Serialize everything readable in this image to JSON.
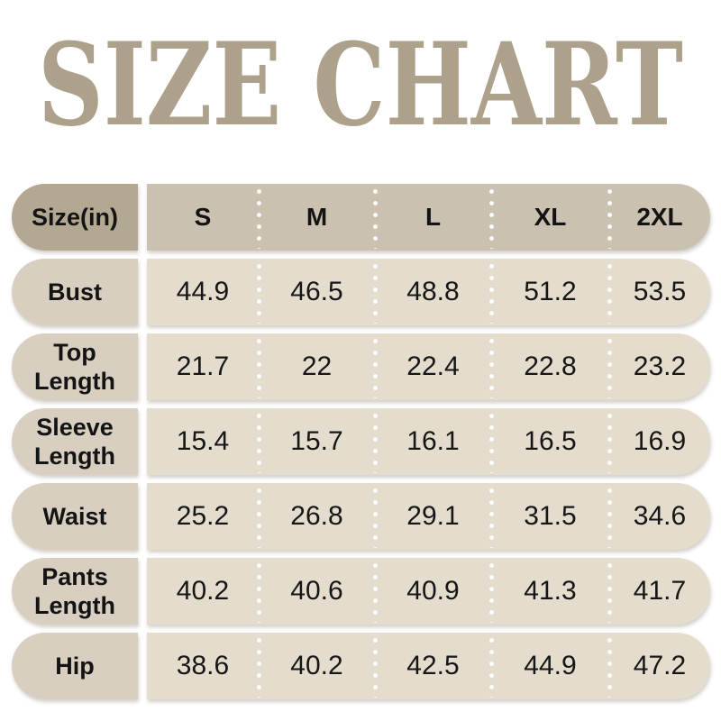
{
  "chart_data": {
    "type": "table",
    "title": "SIZE CHART",
    "unit_header": "Size(in)",
    "columns": [
      "S",
      "M",
      "L",
      "XL",
      "2XL"
    ],
    "rows": [
      {
        "label": "Bust",
        "values": [
          "44.9",
          "46.5",
          "48.8",
          "51.2",
          "53.5"
        ]
      },
      {
        "label": "Top Length",
        "values": [
          "21.7",
          "22",
          "22.4",
          "22.8",
          "23.2"
        ]
      },
      {
        "label": "Sleeve Length",
        "values": [
          "15.4",
          "15.7",
          "16.1",
          "16.5",
          "16.9"
        ]
      },
      {
        "label": "Waist",
        "values": [
          "25.2",
          "26.8",
          "29.1",
          "31.5",
          "34.6"
        ]
      },
      {
        "label": "Pants Length",
        "values": [
          "40.2",
          "40.6",
          "40.9",
          "41.3",
          "41.7"
        ]
      },
      {
        "label": "Hip",
        "values": [
          "38.6",
          "40.2",
          "42.5",
          "44.9",
          "47.2"
        ]
      }
    ],
    "layout_hints": {
      "legend": "none",
      "grid": "dotted-white-column-separators",
      "row_shape": "rounded-pill-rows"
    }
  },
  "colors": {
    "title_text": "#ada18b",
    "header_label_bg": "#b3a892",
    "header_values_bg": "#cbc1b0",
    "row_label_bg": "#d8cfc0",
    "row_values_bg": "#e4dccd",
    "cell_text": "#141414",
    "separator_dots": "#ffffff",
    "page_background": "#ffffff"
  }
}
